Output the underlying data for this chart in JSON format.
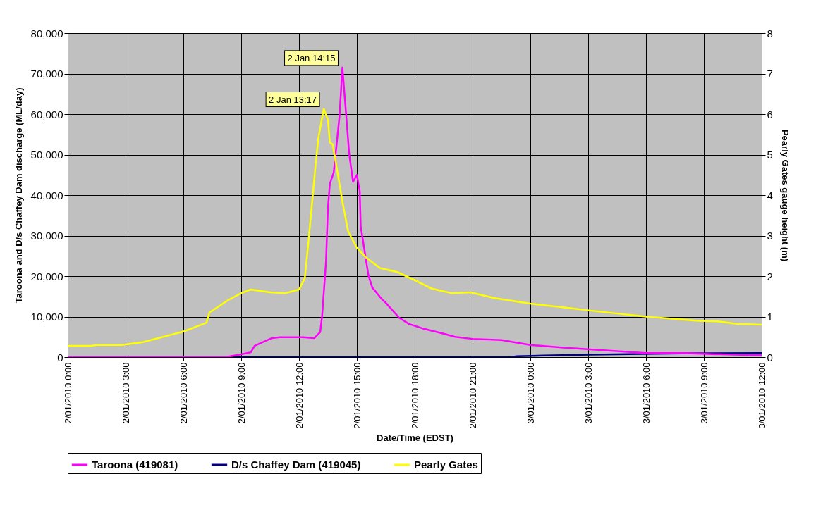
{
  "chart_data": {
    "type": "line",
    "xlabel": "Date/Time (EDST)",
    "ylabel": "Taroona and D/s Chaffey Dam discharge (ML/day)",
    "y2label": "Pearly Gates gauge height (m)",
    "xlim": [
      "2010-01-02T00:00",
      "2010-01-03T12:00"
    ],
    "xticks": [
      {
        "value": "2010-01-02T00:00",
        "label": "2/01/2010 0:00"
      },
      {
        "value": "2010-01-02T03:00",
        "label": "2/01/2010 3:00"
      },
      {
        "value": "2010-01-02T06:00",
        "label": "2/01/2010 6:00"
      },
      {
        "value": "2010-01-02T09:00",
        "label": "2/01/2010 9:00"
      },
      {
        "value": "2010-01-02T12:00",
        "label": "2/01/2010 12:00"
      },
      {
        "value": "2010-01-02T15:00",
        "label": "2/01/2010 15:00"
      },
      {
        "value": "2010-01-02T18:00",
        "label": "2/01/2010 18:00"
      },
      {
        "value": "2010-01-02T21:00",
        "label": "2/01/2010 21:00"
      },
      {
        "value": "2010-01-03T00:00",
        "label": "3/01/2010 0:00"
      },
      {
        "value": "2010-01-03T03:00",
        "label": "3/01/2010 3:00"
      },
      {
        "value": "2010-01-03T06:00",
        "label": "3/01/2010 6:00"
      },
      {
        "value": "2010-01-03T09:00",
        "label": "3/01/2010 9:00"
      },
      {
        "value": "2010-01-03T12:00",
        "label": "3/01/2010 12:00"
      }
    ],
    "ylim": [
      0,
      80000
    ],
    "yticks": [
      {
        "value": 0,
        "label": "0"
      },
      {
        "value": 10000,
        "label": "10,000"
      },
      {
        "value": 20000,
        "label": "20,000"
      },
      {
        "value": 30000,
        "label": "30,000"
      },
      {
        "value": 40000,
        "label": "40,000"
      },
      {
        "value": 50000,
        "label": "50,000"
      },
      {
        "value": 60000,
        "label": "60,000"
      },
      {
        "value": 70000,
        "label": "70,000"
      },
      {
        "value": 80000,
        "label": "80,000"
      }
    ],
    "y2lim": [
      0,
      8
    ],
    "y2ticks": [
      0,
      1,
      2,
      3,
      4,
      5,
      6,
      7,
      8
    ],
    "grid": true,
    "legend": "bottom",
    "annotations": [
      {
        "text": "2 Jan 13:17",
        "x": "2010-01-02T13:17",
        "y": 61300
      },
      {
        "text": "2 Jan 14:15",
        "x": "2010-01-02T14:15",
        "y": 71500
      }
    ],
    "series": [
      {
        "name": "Taroona (419081)",
        "color": "#ff00ff",
        "x": [
          "2010-01-02T00:00",
          "2010-01-02T06:48",
          "2010-01-02T08:12",
          "2010-01-02T09:00",
          "2010-01-02T09:30",
          "2010-01-02T09:42",
          "2010-01-02T10:36",
          "2010-01-02T11:00",
          "2010-01-02T12:12",
          "2010-01-02T12:48",
          "2010-01-02T13:06",
          "2010-01-02T13:12",
          "2010-01-02T13:24",
          "2010-01-02T13:30",
          "2010-01-02T13:36",
          "2010-01-02T13:48",
          "2010-01-02T14:06",
          "2010-01-02T14:15",
          "2010-01-02T14:27",
          "2010-01-02T14:36",
          "2010-01-02T14:48",
          "2010-01-02T15:00",
          "2010-01-02T15:09",
          "2010-01-02T15:12",
          "2010-01-02T15:36",
          "2010-01-02T15:48",
          "2010-01-02T16:18",
          "2010-01-02T16:30",
          "2010-01-02T17:12",
          "2010-01-02T17:42",
          "2010-01-02T18:24",
          "2010-01-02T19:24",
          "2010-01-02T20:06",
          "2010-01-02T21:00",
          "2010-01-02T22:30",
          "2010-01-03T00:00",
          "2010-01-03T01:36",
          "2010-01-03T03:06",
          "2010-01-03T06:00",
          "2010-01-03T07:48",
          "2010-01-03T11:12",
          "2010-01-03T12:00"
        ],
        "values": [
          0,
          0,
          0,
          700,
          1200,
          2800,
          4700,
          4900,
          4900,
          4700,
          6200,
          10300,
          23600,
          36900,
          42800,
          45600,
          59500,
          71500,
          59500,
          50300,
          43300,
          45000,
          41000,
          32300,
          20200,
          17200,
          14300,
          13400,
          9700,
          8200,
          7100,
          5900,
          5000,
          4500,
          4200,
          3000,
          2400,
          1900,
          1000,
          1000,
          500,
          500
        ]
      },
      {
        "name": "D/s Chaffey Dam (419045)",
        "color": "#000080",
        "x": [
          "2010-01-02T00:00",
          "2010-01-02T23:00",
          "2010-01-02T23:18",
          "2010-01-03T00:42",
          "2010-01-03T03:06",
          "2010-01-03T07:48",
          "2010-01-03T12:00"
        ],
        "values": [
          0,
          0,
          200,
          400,
          600,
          900,
          1000
        ]
      },
      {
        "name": "Pearly Gates",
        "color": "#ffff00",
        "axis": "y2",
        "x": [
          "2010-01-02T00:00",
          "2010-01-02T01:12",
          "2010-01-02T01:30",
          "2010-01-02T02:48",
          "2010-01-02T03:54",
          "2010-01-02T06:00",
          "2010-01-02T07:12",
          "2010-01-02T07:21",
          "2010-01-02T08:18",
          "2010-01-02T09:00",
          "2010-01-02T09:30",
          "2010-01-02T10:30",
          "2010-01-02T11:18",
          "2010-01-02T12:00",
          "2010-01-02T12:18",
          "2010-01-02T12:30",
          "2010-01-02T12:51",
          "2010-01-02T13:00",
          "2010-01-02T13:17",
          "2010-01-02T13:30",
          "2010-01-02T13:36",
          "2010-01-02T13:45",
          "2010-01-02T14:16",
          "2010-01-02T14:33",
          "2010-01-02T15:00",
          "2010-01-02T15:30",
          "2010-01-02T16:12",
          "2010-01-02T17:06",
          "2010-01-02T18:00",
          "2010-01-02T18:54",
          "2010-01-02T19:54",
          "2010-01-02T20:54",
          "2010-01-02T22:06",
          "2010-01-03T00:00",
          "2010-01-03T01:42",
          "2010-01-03T03:06",
          "2010-01-03T06:00",
          "2010-01-03T08:36",
          "2010-01-03T09:48",
          "2010-01-03T10:42",
          "2010-01-03T12:00"
        ],
        "values": [
          0.28,
          0.28,
          0.3,
          0.3,
          0.37,
          0.63,
          0.85,
          1.1,
          1.4,
          1.58,
          1.67,
          1.6,
          1.58,
          1.67,
          1.95,
          2.9,
          4.7,
          5.4,
          6.13,
          5.85,
          5.3,
          5.25,
          3.8,
          3.1,
          2.7,
          2.45,
          2.2,
          2.1,
          1.9,
          1.69,
          1.58,
          1.6,
          1.46,
          1.32,
          1.23,
          1.15,
          1.0,
          0.9,
          0.88,
          0.82,
          0.8
        ]
      }
    ]
  }
}
